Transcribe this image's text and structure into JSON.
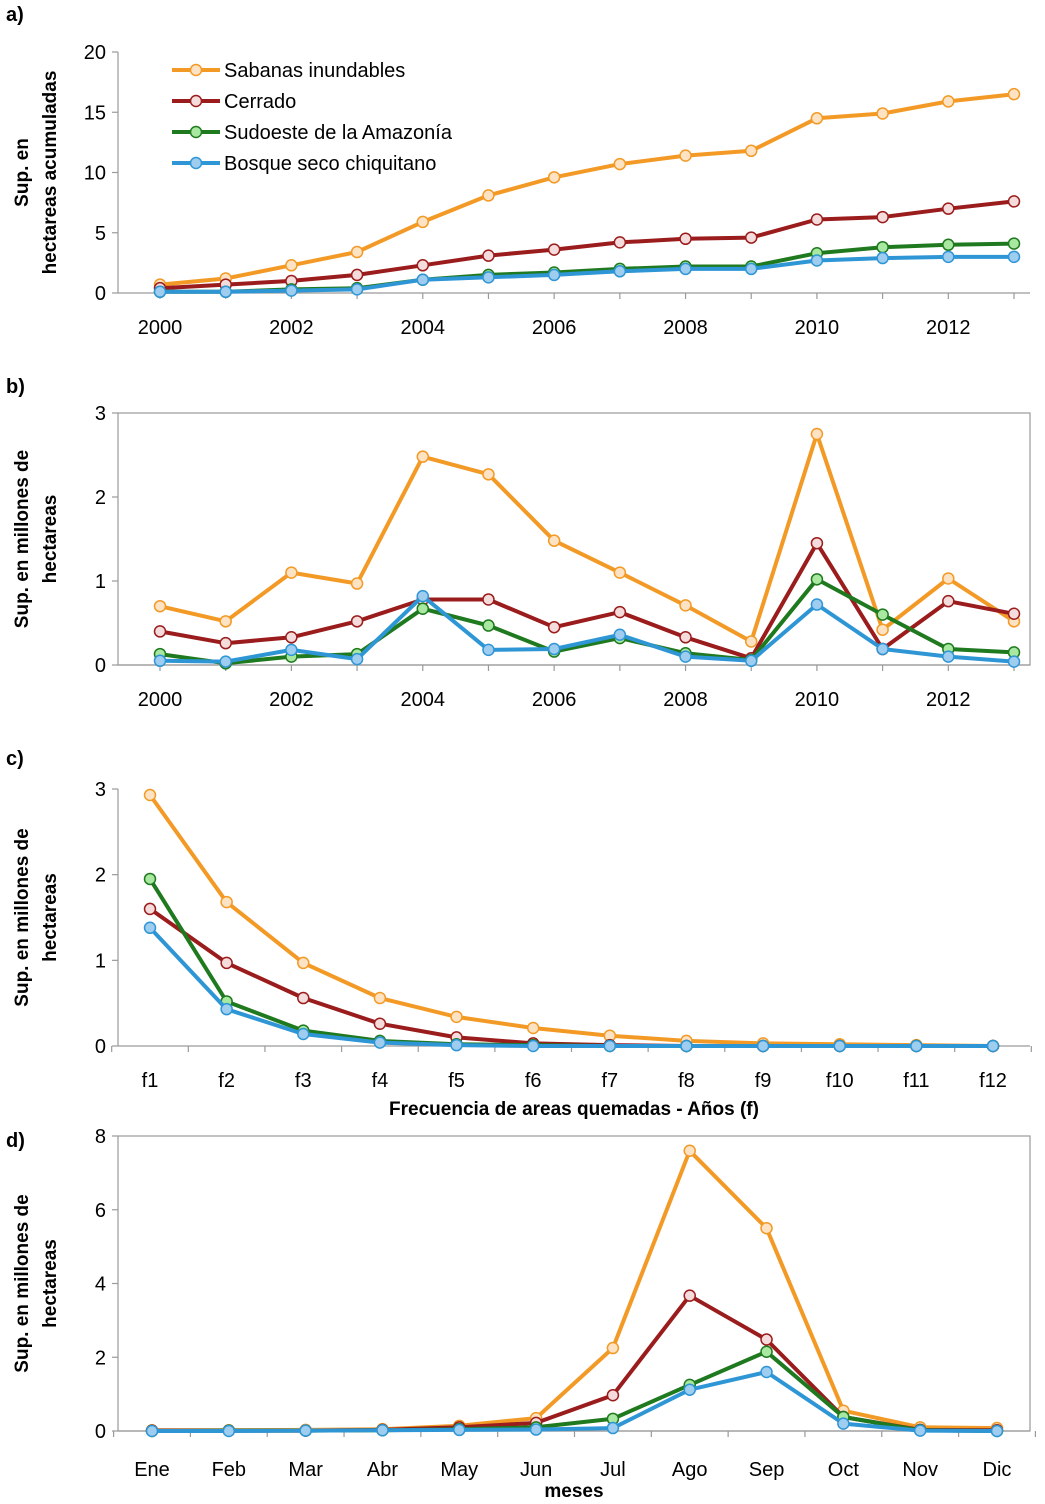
{
  "colors": {
    "Sabanas inundables": "#f39a26",
    "Cerrado": "#9b1c1c",
    "Sudoeste de la Amazonía": "#1f7a1f",
    "Bosque seco chiquitano": "#2f96d6"
  },
  "marker_fill": {
    "Sabanas inundables": "#fde3c4",
    "Cerrado": "#f5dcdc",
    "Sudoeste de la Amazonía": "#a8e8a0",
    "Bosque seco chiquitano": "#9ecdf0"
  },
  "chart_data": [
    {
      "panel": "a)",
      "type": "line",
      "ylabel": "Sup. en hectareas acumuladas",
      "xlabel": "",
      "ylim": [
        0,
        20
      ],
      "yticks": [
        0,
        5,
        10,
        15,
        20
      ],
      "x": [
        2000,
        2001,
        2002,
        2003,
        2004,
        2005,
        2006,
        2007,
        2008,
        2009,
        2010,
        2011,
        2012,
        2013
      ],
      "xticks": [
        "2000",
        "2002",
        "2004",
        "2006",
        "2008",
        "2010",
        "2012"
      ],
      "legend": "top-left",
      "series": [
        {
          "name": "Sabanas inundables",
          "values": [
            0.7,
            1.2,
            2.3,
            3.4,
            5.9,
            8.1,
            9.6,
            10.7,
            11.4,
            11.8,
            14.5,
            14.9,
            15.9,
            16.5
          ]
        },
        {
          "name": "Cerrado",
          "values": [
            0.4,
            0.7,
            1.0,
            1.5,
            2.3,
            3.1,
            3.6,
            4.2,
            4.5,
            4.6,
            6.1,
            6.3,
            7.0,
            7.6
          ]
        },
        {
          "name": "Sudoeste de la Amazonía",
          "values": [
            0.1,
            0.1,
            0.3,
            0.4,
            1.1,
            1.5,
            1.7,
            2.0,
            2.2,
            2.2,
            3.3,
            3.8,
            4.0,
            4.1
          ]
        },
        {
          "name": "Bosque seco chiquitano",
          "values": [
            0.1,
            0.1,
            0.2,
            0.3,
            1.1,
            1.3,
            1.5,
            1.8,
            2.0,
            2.0,
            2.7,
            2.9,
            3.0,
            3.0
          ]
        }
      ]
    },
    {
      "panel": "b)",
      "type": "line",
      "ylabel": "Sup. en millones de hectareas",
      "xlabel": "",
      "ylim": [
        0,
        3
      ],
      "yticks": [
        0,
        1,
        2,
        3
      ],
      "x": [
        2000,
        2001,
        2002,
        2003,
        2004,
        2005,
        2006,
        2007,
        2008,
        2009,
        2010,
        2011,
        2012,
        2013
      ],
      "xticks": [
        "2000",
        "2002",
        "2004",
        "2006",
        "2008",
        "2010",
        "2012"
      ],
      "series": [
        {
          "name": "Sabanas inundables",
          "values": [
            0.7,
            0.52,
            1.1,
            0.97,
            2.48,
            2.27,
            1.48,
            1.1,
            0.71,
            0.28,
            2.75,
            0.42,
            1.03,
            0.52
          ]
        },
        {
          "name": "Cerrado",
          "values": [
            0.4,
            0.26,
            0.33,
            0.52,
            0.78,
            0.78,
            0.45,
            0.63,
            0.33,
            0.08,
            1.45,
            0.19,
            0.76,
            0.61
          ]
        },
        {
          "name": "Sudoeste de la Amazonía",
          "values": [
            0.13,
            0.02,
            0.1,
            0.13,
            0.67,
            0.47,
            0.16,
            0.32,
            0.14,
            0.06,
            1.02,
            0.6,
            0.19,
            0.15
          ]
        },
        {
          "name": "Bosque seco chiquitano",
          "values": [
            0.05,
            0.04,
            0.18,
            0.07,
            0.82,
            0.18,
            0.19,
            0.36,
            0.1,
            0.05,
            0.72,
            0.19,
            0.1,
            0.04
          ]
        }
      ]
    },
    {
      "panel": "c)",
      "type": "line",
      "ylabel": "Sup. en millones de hectareas",
      "xlabel": "Frecuencia de areas quemadas - Años (f)",
      "ylim": [
        0,
        3
      ],
      "yticks": [
        0,
        1,
        2,
        3
      ],
      "categories": [
        "f1",
        "f2",
        "f3",
        "f4",
        "f5",
        "f6",
        "f7",
        "f8",
        "f9",
        "f10",
        "f11",
        "f12"
      ],
      "series": [
        {
          "name": "Sabanas inundables",
          "values": [
            2.93,
            1.68,
            0.97,
            0.56,
            0.34,
            0.21,
            0.12,
            0.06,
            0.03,
            0.02,
            0.01,
            0.0
          ]
        },
        {
          "name": "Cerrado",
          "values": [
            1.6,
            0.97,
            0.56,
            0.26,
            0.1,
            0.03,
            0.01,
            0.0,
            0.0,
            0.0,
            0.0,
            0.0
          ]
        },
        {
          "name": "Sudoeste de la Amazonía",
          "values": [
            1.95,
            0.52,
            0.18,
            0.06,
            0.02,
            0.01,
            0.0,
            0.0,
            0.0,
            0.0,
            0.0,
            0.0
          ]
        },
        {
          "name": "Bosque seco chiquitano",
          "values": [
            1.38,
            0.43,
            0.14,
            0.04,
            0.01,
            0.0,
            0.0,
            0.0,
            0.0,
            0.0,
            0.0,
            0.0
          ]
        }
      ]
    },
    {
      "panel": "d)",
      "type": "line",
      "ylabel": "Sup. en millones de hectareas",
      "xlabel": "meses",
      "ylim": [
        0,
        8
      ],
      "yticks": [
        0,
        2,
        4,
        6,
        8
      ],
      "categories": [
        "Ene",
        "Feb",
        "Mar",
        "Abr",
        "May",
        "Jun",
        "Jul",
        "Ago",
        "Sep",
        "Oct",
        "Nov",
        "Dic"
      ],
      "series": [
        {
          "name": "Sabanas inundables",
          "values": [
            0.02,
            0.02,
            0.03,
            0.05,
            0.14,
            0.35,
            2.25,
            7.6,
            5.5,
            0.55,
            0.1,
            0.08
          ]
        },
        {
          "name": "Cerrado",
          "values": [
            0.01,
            0.01,
            0.01,
            0.03,
            0.1,
            0.22,
            0.97,
            3.67,
            2.48,
            0.38,
            0.03,
            0.02
          ]
        },
        {
          "name": "Sudoeste de la Amazonía",
          "values": [
            0.0,
            0.01,
            0.01,
            0.02,
            0.05,
            0.1,
            0.33,
            1.25,
            2.15,
            0.38,
            0.02,
            0.0
          ]
        },
        {
          "name": "Bosque seco chiquitano",
          "values": [
            0.0,
            0.0,
            0.01,
            0.02,
            0.03,
            0.04,
            0.08,
            1.12,
            1.6,
            0.2,
            0.01,
            0.0
          ]
        }
      ]
    }
  ]
}
